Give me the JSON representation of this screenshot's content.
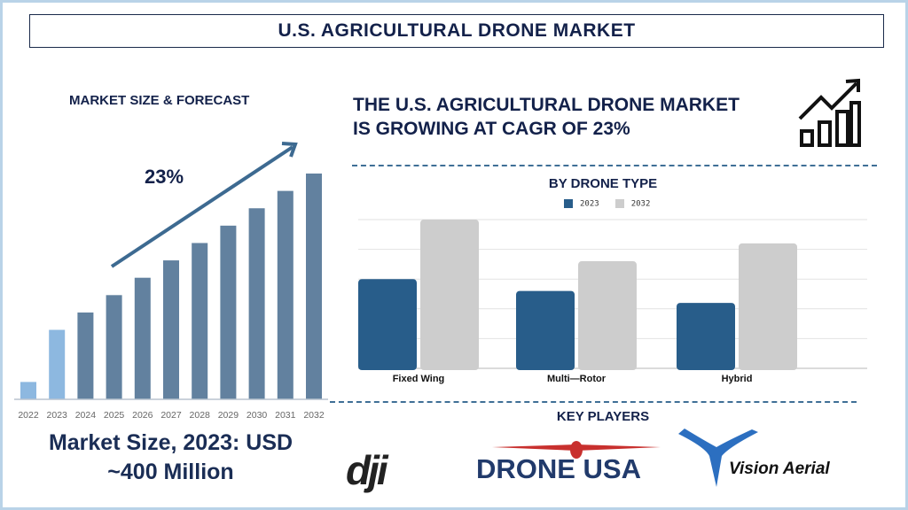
{
  "title": "U.S. AGRICULTURAL DRONE MARKET",
  "left": {
    "heading": "MARKET SIZE & FORECAST",
    "cagr_label": "23%",
    "market_size_line1": "Market Size, 2023: USD",
    "market_size_line2": "~400 Million"
  },
  "headline": {
    "line1": "THE U.S. AGRICULTURAL DRONE MARKET",
    "line2": "IS GROWING AT CAGR OF 23%",
    "icon": "growth-chart-icon"
  },
  "key_players": {
    "heading": "KEY PLAYERS",
    "logos": [
      "dji",
      "DRONE USA",
      "Vision Aerial"
    ]
  },
  "chart_data": [
    {
      "type": "bar",
      "title": "MARKET SIZE & FORECAST",
      "categories": [
        "2022",
        "2023",
        "2024",
        "2025",
        "2026",
        "2027",
        "2028",
        "2029",
        "2030",
        "2031",
        "2032"
      ],
      "values": [
        1.0,
        4.0,
        5.0,
        6.0,
        7.0,
        8.0,
        9.0,
        10.0,
        11.0,
        12.0,
        13.0
      ],
      "colors": [
        "#8db8e0",
        "#8db8e0",
        "#62819f",
        "#62819f",
        "#62819f",
        "#62819f",
        "#62819f",
        "#62819f",
        "#62819f",
        "#62819f",
        "#62819f"
      ],
      "annotation": "23%",
      "grid": false
    },
    {
      "type": "bar",
      "title": "BY DRONE TYPE",
      "categories": [
        "Fixed Wing",
        "Multi—Rotor",
        "Hybrid"
      ],
      "series": [
        {
          "name": "2023",
          "values": [
            3.0,
            2.6,
            2.2
          ],
          "color": "#285d8a"
        },
        {
          "name": "2032",
          "values": [
            5.0,
            3.6,
            4.2
          ],
          "color": "#cdcdcd"
        }
      ],
      "ylim": [
        0,
        5
      ],
      "grid": true,
      "legend": "top"
    }
  ]
}
